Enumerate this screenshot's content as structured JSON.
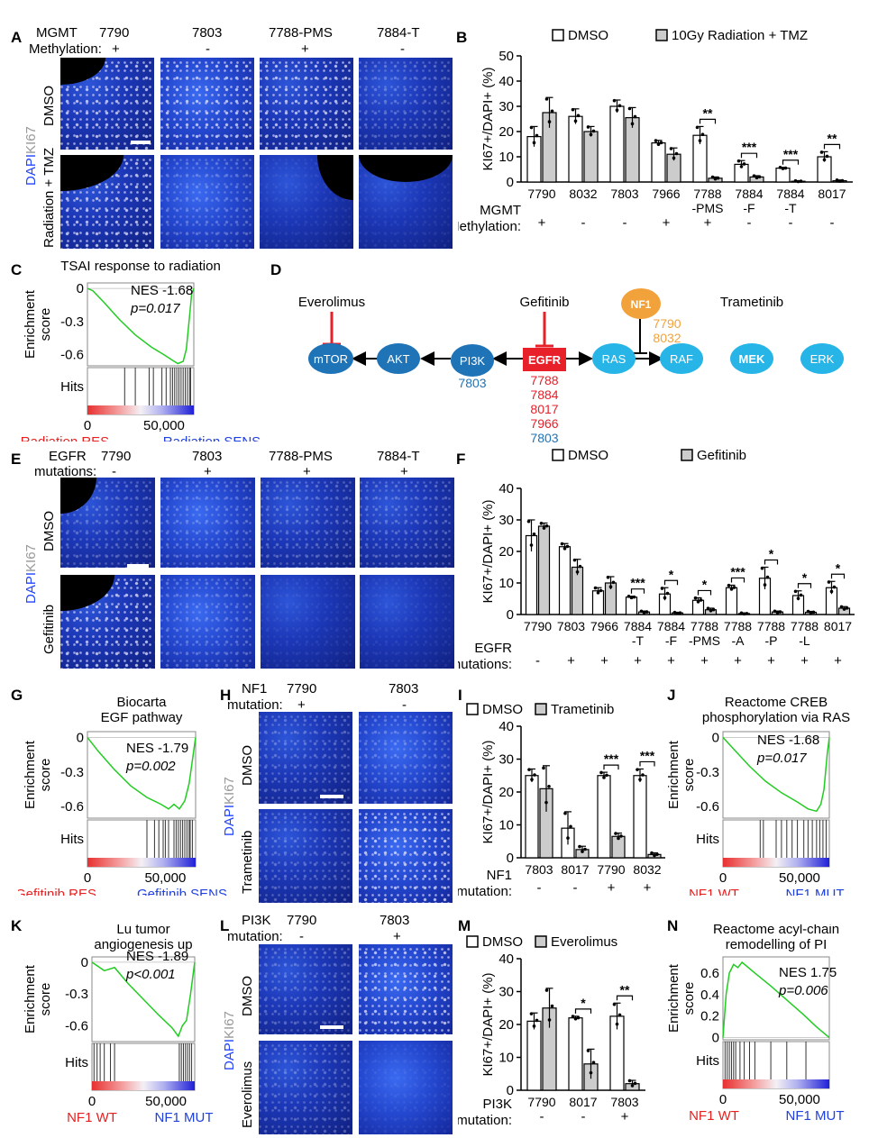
{
  "panels": {
    "A": {
      "letter": "A",
      "row1_label": "MGMT",
      "row2_label": "Methylation:",
      "samples": [
        "7790",
        "7803",
        "7788-PMS",
        "7884-T"
      ],
      "methylation": [
        "+",
        "-",
        "+",
        "-"
      ],
      "rows": [
        "DMSO",
        "Radiation + TMZ"
      ],
      "stain_dapi": "DAPI",
      "stain_ki67": "KI67"
    },
    "E": {
      "letter": "E",
      "row1_label": "EGFR",
      "row2_label": "mutations:",
      "samples": [
        "7790",
        "7803",
        "7788-PMS",
        "7884-T"
      ],
      "status": [
        "-",
        "+",
        "+",
        "+"
      ],
      "rows": [
        "DMSO",
        "Gefitinib"
      ],
      "stain_dapi": "DAPI",
      "stain_ki67": "KI67"
    },
    "H": {
      "letter": "H",
      "row1_label": "NF1",
      "row2_label": "mutation:",
      "samples": [
        "7790",
        "7803"
      ],
      "status": [
        "+",
        "-"
      ],
      "rows": [
        "DMSO",
        "Trametinib"
      ],
      "stain_dapi": "DAPI",
      "stain_ki67": "KI67"
    },
    "L": {
      "letter": "L",
      "row1_label": "PI3K",
      "row2_label": "mutation:",
      "samples": [
        "7790",
        "7803"
      ],
      "status": [
        "-",
        "+"
      ],
      "rows": [
        "DMSO",
        "Everolimus"
      ],
      "stain_dapi": "DAPI",
      "stain_ki67": "KI67"
    },
    "D": {
      "letter": "D",
      "nodes": [
        "mTOR",
        "AKT",
        "PI3K",
        "EGFR",
        "RAS",
        "NF1",
        "RAF",
        "MEK",
        "ERK"
      ],
      "drugs": [
        "Everolimus",
        "Gefitinib",
        "Trametinib"
      ],
      "pi3k_lines": [
        "7803"
      ],
      "egfr_lines": [
        "7788",
        "7884",
        "8017",
        "7966",
        "7803"
      ],
      "nf1_lines": [
        "7790",
        "8032"
      ],
      "colors": {
        "dark_node": "#1f73b7",
        "light_node": "#27b5e8",
        "egfr": "#e8202a",
        "nf1": "#f2a23a",
        "inhibitor": "#e8202a",
        "red_text": "#e8202a",
        "blue_text": "#1f73b7",
        "orange_text": "#f2a23a"
      }
    }
  },
  "chart_data": [
    {
      "id": "B",
      "letter": "B",
      "type": "bar",
      "ylabel": "KI67+/DAPI+ (%)",
      "ylim": [
        0,
        50
      ],
      "yticks": [
        0,
        10,
        20,
        30,
        40,
        50
      ],
      "categories": [
        "7790",
        "8032",
        "7803",
        "7966",
        "7788-PMS",
        "7884-F",
        "7884-T",
        "8017"
      ],
      "category_lines": [
        [
          "7790"
        ],
        [
          "8032"
        ],
        [
          "7803"
        ],
        [
          "7966"
        ],
        [
          "7788",
          "-PMS"
        ],
        [
          "7884",
          "-F"
        ],
        [
          "7884",
          "-T"
        ],
        [
          "8017"
        ]
      ],
      "series": [
        {
          "name": "DMSO",
          "color": "#ffffff",
          "values": [
            18,
            26,
            30,
            15.5,
            18.5,
            7,
            5.5,
            10
          ],
          "err": [
            4,
            3,
            2.5,
            1,
            3.5,
            1.5,
            0.3,
            2
          ]
        },
        {
          "name": "10Gy Radiation + TMZ",
          "color": "#cccccc",
          "values": [
            27.5,
            20,
            25.5,
            11,
            1.5,
            2,
            0.3,
            0.5
          ],
          "err": [
            6,
            2,
            4,
            2.5,
            0.5,
            0.5,
            0.2,
            0.3
          ]
        }
      ],
      "significance": [
        {
          "index": 4,
          "label": "**"
        },
        {
          "index": 5,
          "label": "***"
        },
        {
          "index": 6,
          "label": "***"
        },
        {
          "index": 7,
          "label": "**"
        }
      ],
      "row_label_1": "MGMT",
      "row_label_2": "Methylation:",
      "row_values": [
        "+",
        "-",
        "-",
        "+",
        "+",
        "-",
        "-",
        "-"
      ]
    },
    {
      "id": "F",
      "letter": "F",
      "type": "bar",
      "ylabel": "KI67+/DAPI+ (%)",
      "ylim": [
        0,
        40
      ],
      "yticks": [
        0,
        10,
        20,
        30,
        40
      ],
      "categories": [
        "7790",
        "7803",
        "7966",
        "7884-T",
        "7884-F",
        "7788-PMS",
        "7788-A",
        "7788-P",
        "7788-L",
        "8017"
      ],
      "category_lines": [
        [
          "7790"
        ],
        [
          "7803"
        ],
        [
          "7966"
        ],
        [
          "7884",
          "-T"
        ],
        [
          "7884",
          "-F"
        ],
        [
          "7788",
          "-PMS"
        ],
        [
          "7788",
          "-A"
        ],
        [
          "7788",
          "-P"
        ],
        [
          "7788",
          "-L"
        ],
        [
          "8017"
        ]
      ],
      "series": [
        {
          "name": "DMSO",
          "color": "#ffffff",
          "values": [
            25,
            21.5,
            7.5,
            5.5,
            6.5,
            4.5,
            8.5,
            11.5,
            6,
            8.5
          ],
          "err": [
            5,
            1,
            1,
            0.3,
            2,
            0.8,
            0.8,
            3.5,
            1.5,
            2
          ]
        },
        {
          "name": "Gefitinib",
          "color": "#cccccc",
          "values": [
            28,
            15,
            10,
            0.8,
            0.5,
            1.5,
            0.3,
            0.8,
            0.7,
            2
          ],
          "err": [
            1,
            2.5,
            2,
            0.3,
            0.2,
            0.5,
            0.2,
            0.3,
            0.3,
            0.5
          ]
        }
      ],
      "significance": [
        {
          "index": 3,
          "label": "***"
        },
        {
          "index": 4,
          "label": "*"
        },
        {
          "index": 5,
          "label": "*"
        },
        {
          "index": 6,
          "label": "***"
        },
        {
          "index": 7,
          "label": "*"
        },
        {
          "index": 8,
          "label": "*"
        },
        {
          "index": 9,
          "label": "*"
        }
      ],
      "row_label_1": "EGFR",
      "row_label_2": "mutations:",
      "row_values": [
        "-",
        "+",
        "+",
        "+",
        "+",
        "+",
        "+",
        "+",
        "+",
        "+"
      ]
    },
    {
      "id": "I",
      "letter": "I",
      "type": "bar",
      "ylabel": "KI67+/DAPI+ (%)",
      "ylim": [
        0,
        40
      ],
      "yticks": [
        0,
        10,
        20,
        30,
        40
      ],
      "categories": [
        "7803",
        "8017",
        "7790",
        "8032"
      ],
      "category_lines": [
        [
          "7803"
        ],
        [
          "8017"
        ],
        [
          "7790"
        ],
        [
          "8032"
        ]
      ],
      "series": [
        {
          "name": "DMSO",
          "color": "#ffffff",
          "values": [
            25,
            9,
            25,
            25
          ],
          "err": [
            2,
            5,
            1,
            2
          ]
        },
        {
          "name": "Trametinib",
          "color": "#cccccc",
          "values": [
            21,
            2.5,
            6.5,
            1
          ],
          "err": [
            7,
            1,
            1,
            0.5
          ]
        }
      ],
      "significance": [
        {
          "index": 2,
          "label": "***"
        },
        {
          "index": 3,
          "label": "***"
        }
      ],
      "row_label_1": "NF1",
      "row_label_2": "mutation:",
      "row_values": [
        "-",
        "-",
        "+",
        "+"
      ]
    },
    {
      "id": "M",
      "letter": "M",
      "type": "bar",
      "ylabel": "KI67+/DAPI+ (%)",
      "ylim": [
        0,
        40
      ],
      "yticks": [
        0,
        10,
        20,
        30,
        40
      ],
      "categories": [
        "7790",
        "8017",
        "7803"
      ],
      "category_lines": [
        [
          "7790"
        ],
        [
          "8017"
        ],
        [
          "7803"
        ]
      ],
      "series": [
        {
          "name": "DMSO",
          "color": "#ffffff",
          "values": [
            21,
            22,
            22.5
          ],
          "err": [
            2.5,
            0.5,
            4
          ]
        },
        {
          "name": "Everolimus",
          "color": "#cccccc",
          "values": [
            25,
            8,
            2
          ],
          "err": [
            6,
            4.5,
            1
          ]
        }
      ],
      "significance": [
        {
          "index": 1,
          "label": "*"
        },
        {
          "index": 2,
          "label": "**"
        }
      ],
      "row_label_1": "PI3K",
      "row_label_2": "mutation:",
      "row_values": [
        "-",
        "-",
        "+"
      ]
    },
    {
      "id": "C",
      "letter": "C",
      "type": "line",
      "title": "TSAI response to radiation",
      "nes": "NES -1.68",
      "p": "p=0.017",
      "yticks": [
        "0",
        "-0.3",
        "-0.6"
      ],
      "ylim": [
        -0.7,
        0.05
      ],
      "ylabel_1": "Enrichment",
      "ylabel_2": "score",
      "hits_label": "Hits",
      "x_start": "0",
      "x_end": "50,000",
      "left_label": "Radiation RES",
      "right_label": "Radiation SENS",
      "curve": [
        [
          0,
          0
        ],
        [
          0.05,
          -0.02
        ],
        [
          0.15,
          -0.12
        ],
        [
          0.3,
          -0.28
        ],
        [
          0.45,
          -0.42
        ],
        [
          0.6,
          -0.53
        ],
        [
          0.72,
          -0.6
        ],
        [
          0.8,
          -0.65
        ],
        [
          0.85,
          -0.68
        ],
        [
          0.9,
          -0.66
        ],
        [
          0.93,
          -0.55
        ],
        [
          0.96,
          -0.25
        ],
        [
          0.98,
          -0.05
        ],
        [
          1,
          0
        ]
      ],
      "hits": [
        0.35,
        0.45,
        0.58,
        0.62,
        0.7,
        0.74,
        0.78,
        0.8,
        0.82,
        0.84,
        0.86,
        0.88,
        0.9,
        0.92,
        0.94,
        0.96,
        0.97
      ]
    },
    {
      "id": "G",
      "letter": "G",
      "type": "line",
      "title": "Biocarta",
      "title2": "EGF pathway",
      "nes": "NES -1.79",
      "p": "p=0.002",
      "yticks": [
        "0",
        "-0.3",
        "-0.6"
      ],
      "ylim": [
        -0.7,
        0.05
      ],
      "ylabel_1": "Enrichment",
      "ylabel_2": "score",
      "hits_label": "Hits",
      "x_start": "0",
      "x_end": "50,000",
      "left_label": "Gefitinib RES",
      "right_label": "Gefitinib SENS",
      "curve": [
        [
          0,
          0
        ],
        [
          0.1,
          -0.12
        ],
        [
          0.25,
          -0.28
        ],
        [
          0.4,
          -0.42
        ],
        [
          0.55,
          -0.52
        ],
        [
          0.68,
          -0.58
        ],
        [
          0.75,
          -0.62
        ],
        [
          0.8,
          -0.58
        ],
        [
          0.85,
          -0.62
        ],
        [
          0.9,
          -0.55
        ],
        [
          0.94,
          -0.4
        ],
        [
          0.97,
          -0.2
        ],
        [
          1,
          0
        ]
      ],
      "hits": [
        0.55,
        0.62,
        0.66,
        0.7,
        0.72,
        0.75,
        0.8,
        0.82,
        0.84,
        0.86,
        0.88,
        0.9,
        0.92,
        0.94,
        0.95,
        0.97
      ]
    },
    {
      "id": "J",
      "letter": "J",
      "type": "line",
      "title": "Reactome CREB",
      "title2": "phosphorylation via RAS",
      "nes": "NES -1.68",
      "p": "p=0.017",
      "yticks": [
        "0",
        "-0.3",
        "-0.6"
      ],
      "ylim": [
        -0.7,
        0.05
      ],
      "ylabel_1": "Enrichment",
      "ylabel_2": "score",
      "hits_label": "Hits",
      "x_start": "0",
      "x_end": "50,000",
      "left_label": "NF1 WT",
      "right_label": "NF1 MUT",
      "curve": [
        [
          0,
          0
        ],
        [
          0.1,
          -0.1
        ],
        [
          0.25,
          -0.25
        ],
        [
          0.4,
          -0.38
        ],
        [
          0.55,
          -0.48
        ],
        [
          0.7,
          -0.56
        ],
        [
          0.8,
          -0.62
        ],
        [
          0.88,
          -0.64
        ],
        [
          0.92,
          -0.58
        ],
        [
          0.95,
          -0.45
        ],
        [
          0.98,
          -0.15
        ],
        [
          1,
          0
        ]
      ],
      "hits": [
        0.35,
        0.38,
        0.5,
        0.55,
        0.6,
        0.65,
        0.7,
        0.76,
        0.8,
        0.84,
        0.88,
        0.91,
        0.94,
        0.97
      ]
    },
    {
      "id": "K",
      "letter": "K",
      "type": "line",
      "title": "Lu tumor",
      "title2": "angiogenesis up",
      "nes": "NES -1.89",
      "p": "p<0.001",
      "yticks": [
        "0",
        "-0.3",
        "-0.6"
      ],
      "ylim": [
        -0.75,
        0.05
      ],
      "ylabel_1": "Enrichment",
      "ylabel_2": "score",
      "hits_label": "Hits",
      "x_start": "0",
      "x_end": "50,000",
      "left_label": "NF1 WT",
      "right_label": "NF1 MUT",
      "curve": [
        [
          0,
          0
        ],
        [
          0.12,
          -0.08
        ],
        [
          0.22,
          -0.05
        ],
        [
          0.35,
          -0.2
        ],
        [
          0.5,
          -0.35
        ],
        [
          0.65,
          -0.5
        ],
        [
          0.78,
          -0.62
        ],
        [
          0.84,
          -0.7
        ],
        [
          0.88,
          -0.6
        ],
        [
          0.92,
          -0.55
        ],
        [
          0.96,
          -0.3
        ],
        [
          1,
          0
        ]
      ],
      "hits": [
        0.02,
        0.05,
        0.08,
        0.12,
        0.18,
        0.22,
        0.85,
        0.87,
        0.89,
        0.91,
        0.93,
        0.95,
        0.97
      ]
    },
    {
      "id": "N",
      "letter": "N",
      "type": "line",
      "title": "Reactome acyl-chain",
      "title2": "remodelling of PI",
      "nes": "NES 1.75",
      "p": "p=0.006",
      "yticks": [
        "0.6",
        "0.4",
        "0.2",
        "0"
      ],
      "ylim": [
        -0.02,
        0.75
      ],
      "ylabel_1": "Enrichment",
      "ylabel_2": "score",
      "hits_label": "Hits",
      "x_start": "0",
      "x_end": "50,000",
      "left_label": "NF1 WT",
      "right_label": "NF1 MUT",
      "curve": [
        [
          0,
          0
        ],
        [
          0.03,
          0.4
        ],
        [
          0.06,
          0.6
        ],
        [
          0.1,
          0.68
        ],
        [
          0.14,
          0.65
        ],
        [
          0.18,
          0.7
        ],
        [
          0.3,
          0.6
        ],
        [
          0.45,
          0.48
        ],
        [
          0.6,
          0.35
        ],
        [
          0.75,
          0.22
        ],
        [
          0.88,
          0.1
        ],
        [
          1,
          0
        ]
      ],
      "hits": [
        0.02,
        0.04,
        0.06,
        0.08,
        0.1,
        0.12,
        0.16,
        0.2,
        0.25,
        0.3,
        0.45,
        0.6,
        0.78
      ]
    }
  ]
}
